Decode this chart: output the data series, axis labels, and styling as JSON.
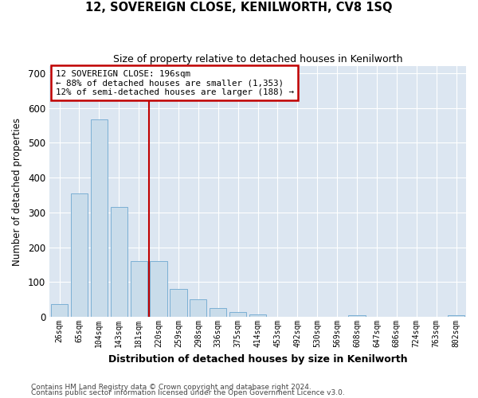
{
  "title": "12, SOVEREIGN CLOSE, KENILWORTH, CV8 1SQ",
  "subtitle": "Size of property relative to detached houses in Kenilworth",
  "xlabel": "Distribution of detached houses by size in Kenilworth",
  "ylabel": "Number of detached properties",
  "footer_line1": "Contains HM Land Registry data © Crown copyright and database right 2024.",
  "footer_line2": "Contains public sector information licensed under the Open Government Licence v3.0.",
  "bar_labels": [
    "26sqm",
    "65sqm",
    "104sqm",
    "143sqm",
    "181sqm",
    "220sqm",
    "259sqm",
    "298sqm",
    "336sqm",
    "375sqm",
    "414sqm",
    "453sqm",
    "492sqm",
    "530sqm",
    "569sqm",
    "608sqm",
    "647sqm",
    "686sqm",
    "724sqm",
    "763sqm",
    "802sqm"
  ],
  "bar_values": [
    38,
    355,
    568,
    315,
    160,
    160,
    80,
    50,
    25,
    15,
    8,
    0,
    0,
    0,
    0,
    5,
    0,
    0,
    0,
    0,
    5
  ],
  "bar_color": "#c9dcea",
  "bar_edgecolor": "#7bafd4",
  "highlight_color": "#c00000",
  "vline_x": 4.5,
  "property_label": "12 SOVEREIGN CLOSE: 196sqm",
  "annotation_line1": "← 88% of detached houses are smaller (1,353)",
  "annotation_line2": "12% of semi-detached houses are larger (188) →",
  "ylim": [
    0,
    720
  ],
  "yticks": [
    0,
    100,
    200,
    300,
    400,
    500,
    600,
    700
  ],
  "fig_facecolor": "#ffffff",
  "plot_facecolor": "#dce6f1",
  "figsize": [
    6.0,
    5.0
  ],
  "dpi": 100
}
